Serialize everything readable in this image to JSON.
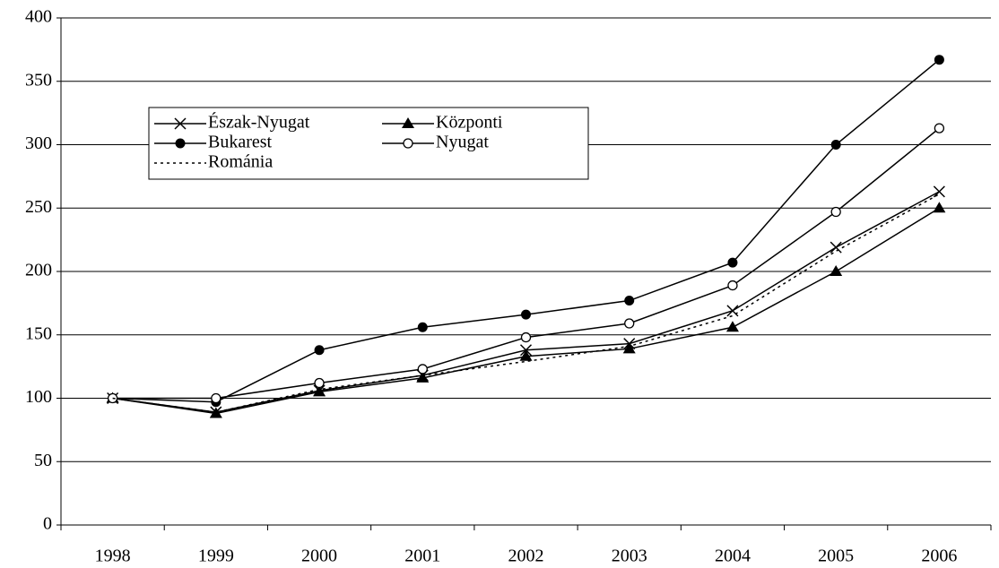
{
  "chart_data": {
    "type": "line",
    "categories": [
      "1998",
      "1999",
      "2000",
      "2001",
      "2002",
      "2003",
      "2004",
      "2005",
      "2006"
    ],
    "series": [
      {
        "name": "Észak-Nyugat",
        "color": "#000000",
        "marker": "x",
        "dash": "solid",
        "values": [
          100,
          89,
          106,
          118,
          138,
          143,
          169,
          219,
          263
        ]
      },
      {
        "name": "Központi",
        "color": "#000000",
        "marker": "triangle",
        "dash": "solid",
        "values": [
          100,
          88,
          105,
          116,
          133,
          139,
          156,
          200,
          250
        ]
      },
      {
        "name": "Bukarest",
        "color": "#000000",
        "marker": "filled-circle",
        "dash": "solid",
        "values": [
          100,
          97,
          138,
          156,
          166,
          177,
          207,
          300,
          367
        ]
      },
      {
        "name": "Nyugat",
        "color": "#000000",
        "marker": "open-circle",
        "dash": "solid",
        "values": [
          100,
          100,
          112,
          123,
          148,
          159,
          189,
          247,
          313
        ]
      },
      {
        "name": "Románia",
        "color": "#000000",
        "marker": "none",
        "dash": "dotted",
        "values": [
          100,
          89,
          107,
          118,
          129,
          141,
          165,
          216,
          261
        ]
      }
    ],
    "ylim": [
      0,
      400
    ],
    "yticks": [
      0,
      50,
      100,
      150,
      200,
      250,
      300,
      350,
      400
    ],
    "grid": true
  }
}
